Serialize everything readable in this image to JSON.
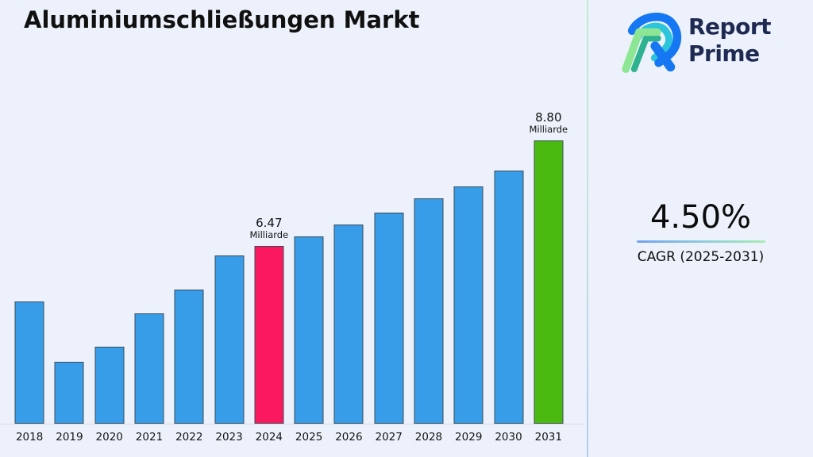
{
  "header": {
    "title": "Aluminiumschließungen Markt"
  },
  "brand": {
    "name_line1": "Report",
    "name_line2": "Prime",
    "text_color": "#1e2a52",
    "logo_colors": {
      "blue": "#1677f3",
      "cyan": "#2cc5db",
      "teal": "#2eb28f",
      "green": "#8de693"
    }
  },
  "cagr": {
    "value": "4.50%",
    "label": "CAGR (2025-2031)"
  },
  "chart_data": {
    "type": "bar",
    "title": "Aluminiumschließungen Markt",
    "unit": "Milliarde",
    "categories": [
      "2018",
      "2019",
      "2020",
      "2021",
      "2022",
      "2023",
      "2024",
      "2025",
      "2026",
      "2027",
      "2028",
      "2029",
      "2030",
      "2031"
    ],
    "values": [
      5.25,
      3.92,
      4.25,
      4.99,
      5.51,
      6.26,
      6.47,
      6.68,
      6.94,
      7.21,
      7.52,
      7.78,
      8.14,
      8.8
    ],
    "labeled_points": [
      {
        "category": "2024",
        "value_label": "6.47",
        "unit_label": "Milliarde"
      },
      {
        "category": "2031",
        "value_label": "8.80",
        "unit_label": "Milliarde"
      }
    ],
    "bar_color_default": "#379de8",
    "bar_color_2024": "#fa185e",
    "bar_color_2031": "#4aba10",
    "bar_border_color": "#3e4a54",
    "xlabel": "",
    "ylabel": "",
    "ylim": [
      2.55,
      9.27
    ],
    "grid": false,
    "legend": false,
    "background": "#ecf1fb"
  }
}
